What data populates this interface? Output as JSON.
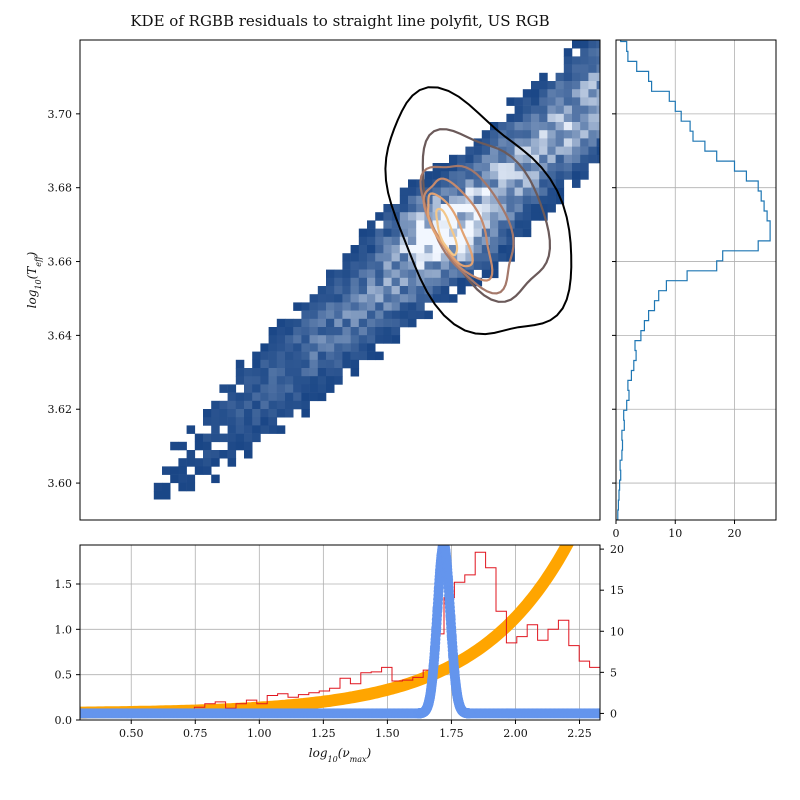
{
  "title": "KDE of RGBB residuals to straight line polyfit, US RGB",
  "colors": {
    "heatmap_low": "#0b3a7e",
    "heatmap_high": "#f2f7ff",
    "contours": [
      "#000000",
      "#6b5a5a",
      "#a4786a",
      "#c68a6c",
      "#e2a272",
      "#f3c78a"
    ],
    "right_hist": "#1f77b4",
    "bottom_hist": "#e0141e",
    "curve": "#ffa500",
    "gaussian": "#6495ed",
    "grid": "#b0b0b0"
  },
  "chart_data": [
    {
      "id": "main",
      "type": "heatmap",
      "xlim": [
        0.3,
        2.33
      ],
      "ylim": [
        3.59,
        3.72
      ],
      "ylabel": "log_10(T_eff)",
      "yticks": [
        "3.60",
        "3.62",
        "3.64",
        "3.66",
        "3.68",
        "3.70"
      ],
      "ytick_values": [
        3.6,
        3.62,
        3.64,
        3.66,
        3.68,
        3.7
      ],
      "grid": false,
      "density_ridge": {
        "slope": 0.0607,
        "intercept": 3.5635
      },
      "kde_peak": {
        "x": 1.72,
        "y": 3.668
      },
      "contours": [
        {
          "level": 1,
          "cx": 1.85,
          "cy": 3.672,
          "rx": 0.62,
          "ry": 0.016,
          "angle_deg": 28
        },
        {
          "level": 2,
          "cx": 1.88,
          "cy": 3.673,
          "rx": 0.42,
          "ry": 0.011,
          "angle_deg": 28
        },
        {
          "level": 3,
          "cx": 1.82,
          "cy": 3.67,
          "rx": 0.28,
          "ry": 0.0085,
          "angle_deg": 28
        },
        {
          "level": 4,
          "cx": 1.78,
          "cy": 3.669,
          "rx": 0.18,
          "ry": 0.0068,
          "angle_deg": 28
        },
        {
          "level": 5,
          "cx": 1.74,
          "cy": 3.6685,
          "rx": 0.1,
          "ry": 0.005,
          "angle_deg": 28
        },
        {
          "level": 6,
          "cx": 1.73,
          "cy": 3.668,
          "rx": 0.05,
          "ry": 0.003,
          "angle_deg": 20
        }
      ]
    },
    {
      "id": "right",
      "type": "bar",
      "orientation": "horizontal",
      "ylim": [
        3.59,
        3.72
      ],
      "xlim": [
        0,
        27
      ],
      "xticks": [
        "0",
        "10",
        "20"
      ],
      "xtick_values": [
        0,
        10,
        20
      ],
      "grid": true,
      "ybins_start": 3.59,
      "ybin_width": 0.0027,
      "counts": [
        0.3,
        0.4,
        0.5,
        0.6,
        0.8,
        0.7,
        1.0,
        1.1,
        1.0,
        1.4,
        1.3,
        1.8,
        2.2,
        2.0,
        2.6,
        3.0,
        3.4,
        3.2,
        4.2,
        4.8,
        5.5,
        6.5,
        7.2,
        8.5,
        12.0,
        17.0,
        18.0,
        24.0,
        26.0,
        26.0,
        25.5,
        25.0,
        24.5,
        24.0,
        22.0,
        20.0,
        17.0,
        15.0,
        13.0,
        12.5,
        11.0,
        10.0,
        9.0,
        6.0,
        5.5,
        3.5,
        2.0,
        1.8,
        0.8,
        0.5
      ]
    },
    {
      "id": "bottom",
      "type": "line",
      "xlim": [
        0.3,
        2.33
      ],
      "ylim": [
        0,
        1.93
      ],
      "y2lim": [
        -0.8,
        20.5
      ],
      "xlabel": "log_10(ν_max)",
      "xticks": [
        "0.50",
        "0.75",
        "1.00",
        "1.25",
        "1.50",
        "1.75",
        "2.00",
        "2.25"
      ],
      "xtick_values": [
        0.5,
        0.75,
        1.0,
        1.25,
        1.5,
        1.75,
        2.0,
        2.25
      ],
      "yticks": [
        "0.0",
        "0.5",
        "1.0",
        "1.5"
      ],
      "ytick_values": [
        0.0,
        0.5,
        1.0,
        1.5
      ],
      "y2ticks": [
        "0",
        "5",
        "10",
        "15",
        "20"
      ],
      "y2tick_values": [
        0,
        5,
        10,
        15,
        20
      ],
      "grid": true,
      "hist": {
        "bin_start": 0.3,
        "bin_width": 0.0406,
        "values": [
          0.08,
          0.08,
          0.09,
          0.09,
          0.1,
          0.1,
          0.1,
          0.11,
          0.1,
          0.12,
          0.12,
          0.14,
          0.18,
          0.2,
          0.13,
          0.18,
          0.22,
          0.18,
          0.27,
          0.29,
          0.25,
          0.28,
          0.3,
          0.32,
          0.35,
          0.46,
          0.4,
          0.52,
          0.53,
          0.58,
          0.43,
          0.44,
          0.47,
          0.55,
          0.95,
          1.35,
          1.52,
          1.6,
          1.85,
          1.68,
          1.2,
          0.85,
          0.92,
          1.05,
          0.88,
          1.0,
          1.1,
          0.82,
          0.65,
          0.58
        ]
      },
      "curve": {
        "axis": "secondary",
        "a": 0.1,
        "b": 2.8,
        "x0": 0.3
      },
      "gaussian": {
        "axis": "secondary",
        "amplitude": 20.5,
        "mu": 1.72,
        "sigma": 0.025,
        "baseline": 0.0
      }
    }
  ]
}
